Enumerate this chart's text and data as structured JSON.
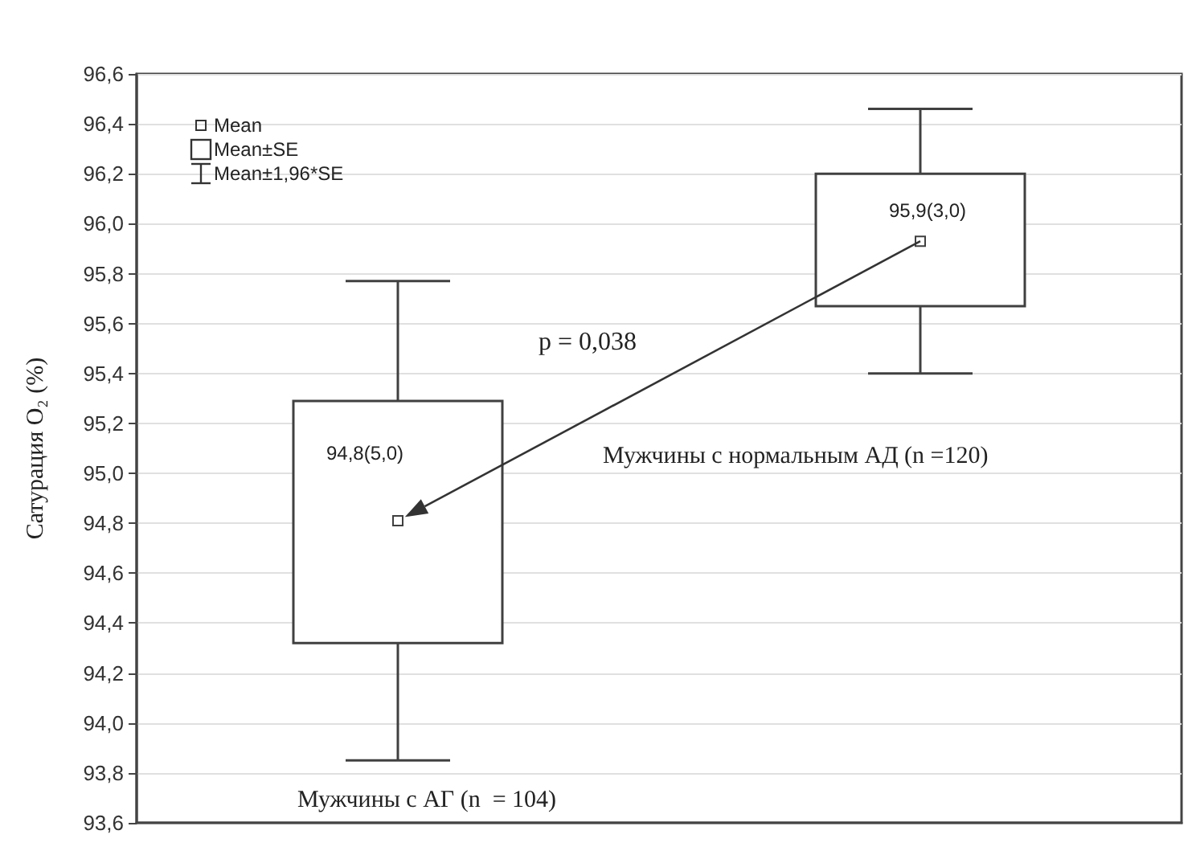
{
  "chart_data": {
    "type": "box",
    "ylabel": "Сатурация O₂ (%)",
    "categories": [
      null,
      null
    ],
    "boxes": [
      {
        "low": 93.85,
        "q1": 94.32,
        "median": 94.81,
        "q3": 95.29,
        "high": 95.77
      },
      {
        "low": 95.4,
        "q1": 95.67,
        "median": 95.93,
        "q3": 96.2,
        "high": 96.46
      }
    ],
    "color": "#404040",
    "ylim": [
      93.6,
      96.6
    ],
    "yticks": [
      {
        "value": 93.6,
        "label": "93,6"
      },
      {
        "value": 93.8,
        "label": "93,8"
      },
      {
        "value": 94.0,
        "label": "94,0"
      },
      {
        "value": 94.2,
        "label": "94,2"
      },
      {
        "value": 94.4,
        "label": "94,4"
      },
      {
        "value": 94.6,
        "label": "94,6"
      },
      {
        "value": 94.8,
        "label": "94,8"
      },
      {
        "value": 95.0,
        "label": "95,0"
      },
      {
        "value": 95.2,
        "label": "95,2"
      },
      {
        "value": 95.4,
        "label": "95,4"
      },
      {
        "value": 95.6,
        "label": "95,6"
      },
      {
        "value": 95.8,
        "label": "95,8"
      },
      {
        "value": 96.0,
        "label": "96,0"
      },
      {
        "value": 96.2,
        "label": "96,2"
      },
      {
        "value": 96.4,
        "label": "96,4"
      },
      {
        "value": 96.6,
        "label": "96,6"
      }
    ],
    "grid": "y",
    "annotations": [
      "Mean",
      "Mean±SE",
      "Mean±1,96*SE",
      "p = 0,038",
      "94,8(5,0)",
      "95,9(3,0)",
      "Мужчины с АГ (n  = 104)",
      "Мужчины с нормальным АД (n =120)"
    ]
  }
}
